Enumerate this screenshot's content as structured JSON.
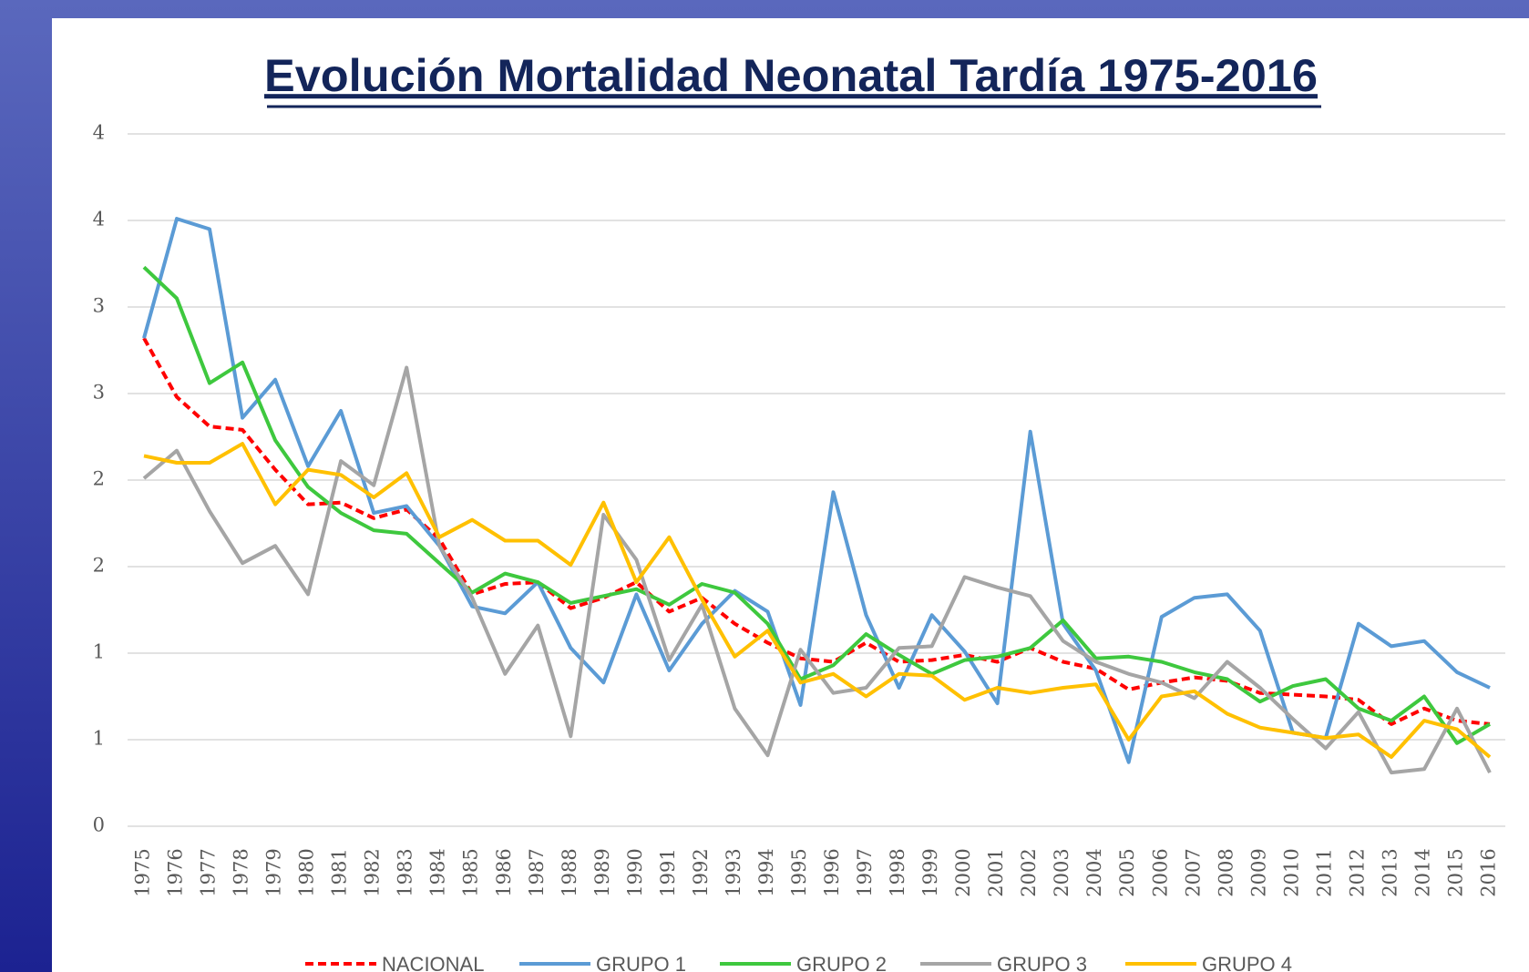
{
  "chart_data": {
    "type": "line",
    "title": "Evolución Mortalidad Neonatal Tardía 1975-2016",
    "categories": [
      "1975",
      "1976",
      "1977",
      "1978",
      "1979",
      "1980",
      "1981",
      "1982",
      "1983",
      "1984",
      "1985",
      "1986",
      "1987",
      "1988",
      "1989",
      "1990",
      "1991",
      "1992",
      "1993",
      "1994",
      "1995",
      "1996",
      "1997",
      "1998",
      "1999",
      "2000",
      "2001",
      "2002",
      "2003",
      "2004",
      "2005",
      "2006",
      "2007",
      "2008",
      "2009",
      "2010",
      "2011",
      "2012",
      "2013",
      "2014",
      "2015",
      "2016"
    ],
    "ylim": [
      0,
      4
    ],
    "yticks": [
      0,
      {
        "value": 0.5,
        "label": "1"
      },
      1,
      {
        "value": 1.5,
        "label": "2"
      },
      2,
      {
        "value": 2.5,
        "label": "3"
      },
      3,
      {
        "value": 3.5,
        "label": "4"
      },
      4
    ],
    "grid": true,
    "legend": "bottom",
    "series": [
      {
        "name": "NACIONAL",
        "color": "#ff0000",
        "dashed": true,
        "values": [
          2.82,
          2.48,
          2.31,
          2.29,
          2.06,
          1.86,
          1.87,
          1.78,
          1.83,
          1.66,
          1.34,
          1.4,
          1.41,
          1.26,
          1.32,
          1.41,
          1.24,
          1.32,
          1.17,
          1.06,
          0.97,
          0.95,
          1.06,
          0.95,
          0.96,
          0.99,
          0.95,
          1.03,
          0.95,
          0.91,
          0.79,
          0.83,
          0.86,
          0.84,
          0.77,
          0.76,
          0.75,
          0.73,
          0.59,
          0.68,
          0.61,
          0.59
        ]
      },
      {
        "name": "GRUPO 1",
        "color": "#5b9bd5",
        "values": [
          2.82,
          3.51,
          3.45,
          2.36,
          2.58,
          2.08,
          2.4,
          1.81,
          1.85,
          1.62,
          1.27,
          1.23,
          1.41,
          1.03,
          0.83,
          1.34,
          0.9,
          1.17,
          1.36,
          1.24,
          0.7,
          1.93,
          1.22,
          0.8,
          1.22,
          1.01,
          0.71,
          2.28,
          1.17,
          0.9,
          0.37,
          1.21,
          1.32,
          1.34,
          1.13,
          0.54,
          0.51,
          1.17,
          1.04,
          1.07,
          0.89,
          0.8
        ]
      },
      {
        "name": "GRUPO 2",
        "color": "#3ec83e",
        "values": [
          3.23,
          3.05,
          2.56,
          2.68,
          2.23,
          1.96,
          1.81,
          1.71,
          1.69,
          1.52,
          1.35,
          1.46,
          1.41,
          1.29,
          1.33,
          1.37,
          1.28,
          1.4,
          1.35,
          1.17,
          0.85,
          0.93,
          1.11,
          0.99,
          0.88,
          0.96,
          0.98,
          1.03,
          1.19,
          0.97,
          0.98,
          0.95,
          0.89,
          0.85,
          0.72,
          0.81,
          0.85,
          0.68,
          0.61,
          0.75,
          0.48,
          0.59
        ]
      },
      {
        "name": "GRUPO 3",
        "color": "#a5a5a5",
        "values": [
          2.01,
          2.17,
          1.82,
          1.52,
          1.62,
          1.34,
          2.11,
          1.97,
          2.65,
          1.62,
          1.32,
          0.88,
          1.16,
          0.52,
          1.8,
          1.54,
          0.96,
          1.28,
          0.68,
          0.41,
          1.02,
          0.77,
          0.8,
          1.03,
          1.04,
          1.44,
          1.38,
          1.33,
          1.07,
          0.95,
          0.88,
          0.83,
          0.74,
          0.95,
          0.8,
          0.62,
          0.45,
          0.66,
          0.31,
          0.33,
          0.68,
          0.31
        ]
      },
      {
        "name": "GRUPO 4",
        "color": "#ffc000",
        "values": [
          2.14,
          2.1,
          2.1,
          2.21,
          1.86,
          2.06,
          2.03,
          1.9,
          2.04,
          1.67,
          1.77,
          1.65,
          1.65,
          1.51,
          1.87,
          1.41,
          1.67,
          1.31,
          0.98,
          1.13,
          0.83,
          0.88,
          0.75,
          0.88,
          0.87,
          0.73,
          0.8,
          0.77,
          0.8,
          0.82,
          0.5,
          0.75,
          0.78,
          0.65,
          0.57,
          0.54,
          0.51,
          0.53,
          0.4,
          0.61,
          0.56,
          0.4
        ]
      }
    ]
  }
}
